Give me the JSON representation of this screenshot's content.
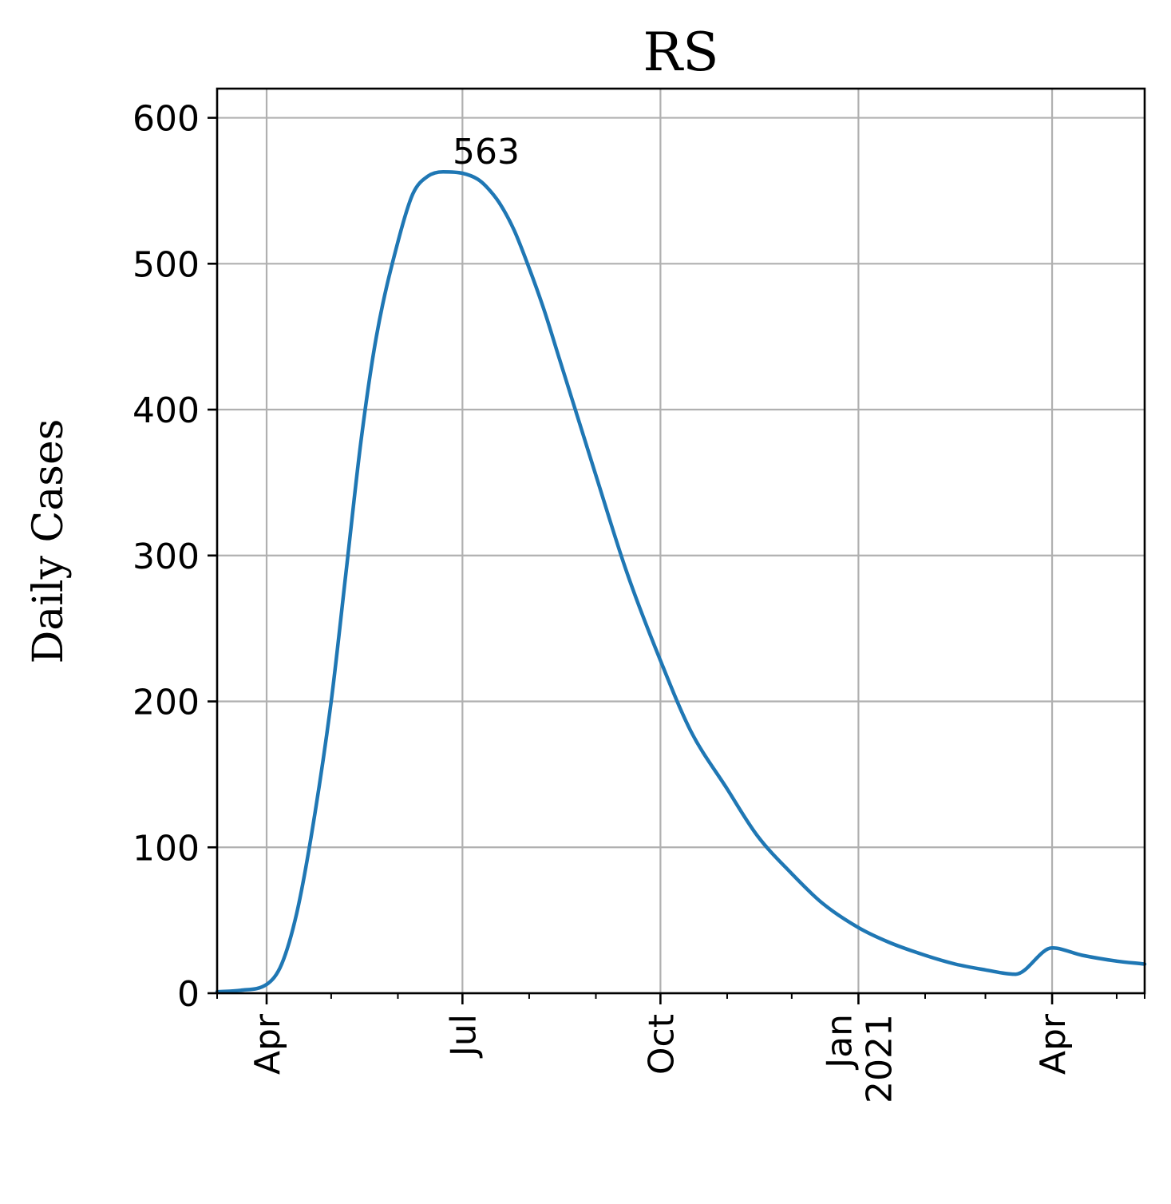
{
  "chart_data": {
    "type": "line",
    "title": "RS",
    "ylabel": "Daily Cases",
    "xlabel": "",
    "xlim": [
      "2020-03-09",
      "2021-05-14"
    ],
    "ylim": [
      0,
      620
    ],
    "grid": true,
    "yticks": [
      0,
      100,
      200,
      300,
      400,
      500,
      600
    ],
    "xticks": [
      {
        "date": "2020-04-01",
        "label": "Apr"
      },
      {
        "date": "2020-07-01",
        "label": "Jul"
      },
      {
        "date": "2020-10-01",
        "label": "Oct"
      },
      {
        "date": "2021-01-01",
        "label": "Jan\n2021"
      },
      {
        "date": "2021-04-01",
        "label": "Apr"
      }
    ],
    "minor_xticks": [
      "2020-03-09",
      "2020-05-01",
      "2020-06-01",
      "2020-08-01",
      "2020-09-01",
      "2020-11-01",
      "2020-12-01",
      "2021-02-01",
      "2021-03-01",
      "2021-05-01",
      "2021-05-14"
    ],
    "series": [
      {
        "color": "#1f77b4",
        "x": [
          "2020-03-09",
          "2020-03-20",
          "2020-04-01",
          "2020-04-08",
          "2020-04-15",
          "2020-04-22",
          "2020-05-01",
          "2020-05-08",
          "2020-05-15",
          "2020-05-22",
          "2020-06-01",
          "2020-06-08",
          "2020-06-15",
          "2020-06-22",
          "2020-07-01",
          "2020-07-08",
          "2020-07-12",
          "2020-07-18",
          "2020-07-25",
          "2020-08-01",
          "2020-08-08",
          "2020-08-15",
          "2020-09-01",
          "2020-09-15",
          "2020-10-01",
          "2020-10-15",
          "2020-11-01",
          "2020-11-15",
          "2020-12-01",
          "2020-12-15",
          "2021-01-01",
          "2021-01-15",
          "2021-02-01",
          "2021-02-15",
          "2021-03-01",
          "2021-03-15",
          "2021-04-01",
          "2021-04-15",
          "2021-05-01",
          "2021-05-14"
        ],
        "y": [
          1,
          2,
          6,
          20,
          55,
          110,
          200,
          290,
          380,
          450,
          515,
          548,
          560,
          563,
          562,
          558,
          553,
          542,
          523,
          497,
          468,
          435,
          355,
          290,
          228,
          180,
          140,
          108,
          82,
          62,
          45,
          35,
          26,
          20,
          16,
          13,
          31,
          26,
          22,
          20
        ]
      }
    ],
    "annotations": [
      {
        "text": "563",
        "x": "2020-07-12",
        "y": 563
      }
    ]
  }
}
